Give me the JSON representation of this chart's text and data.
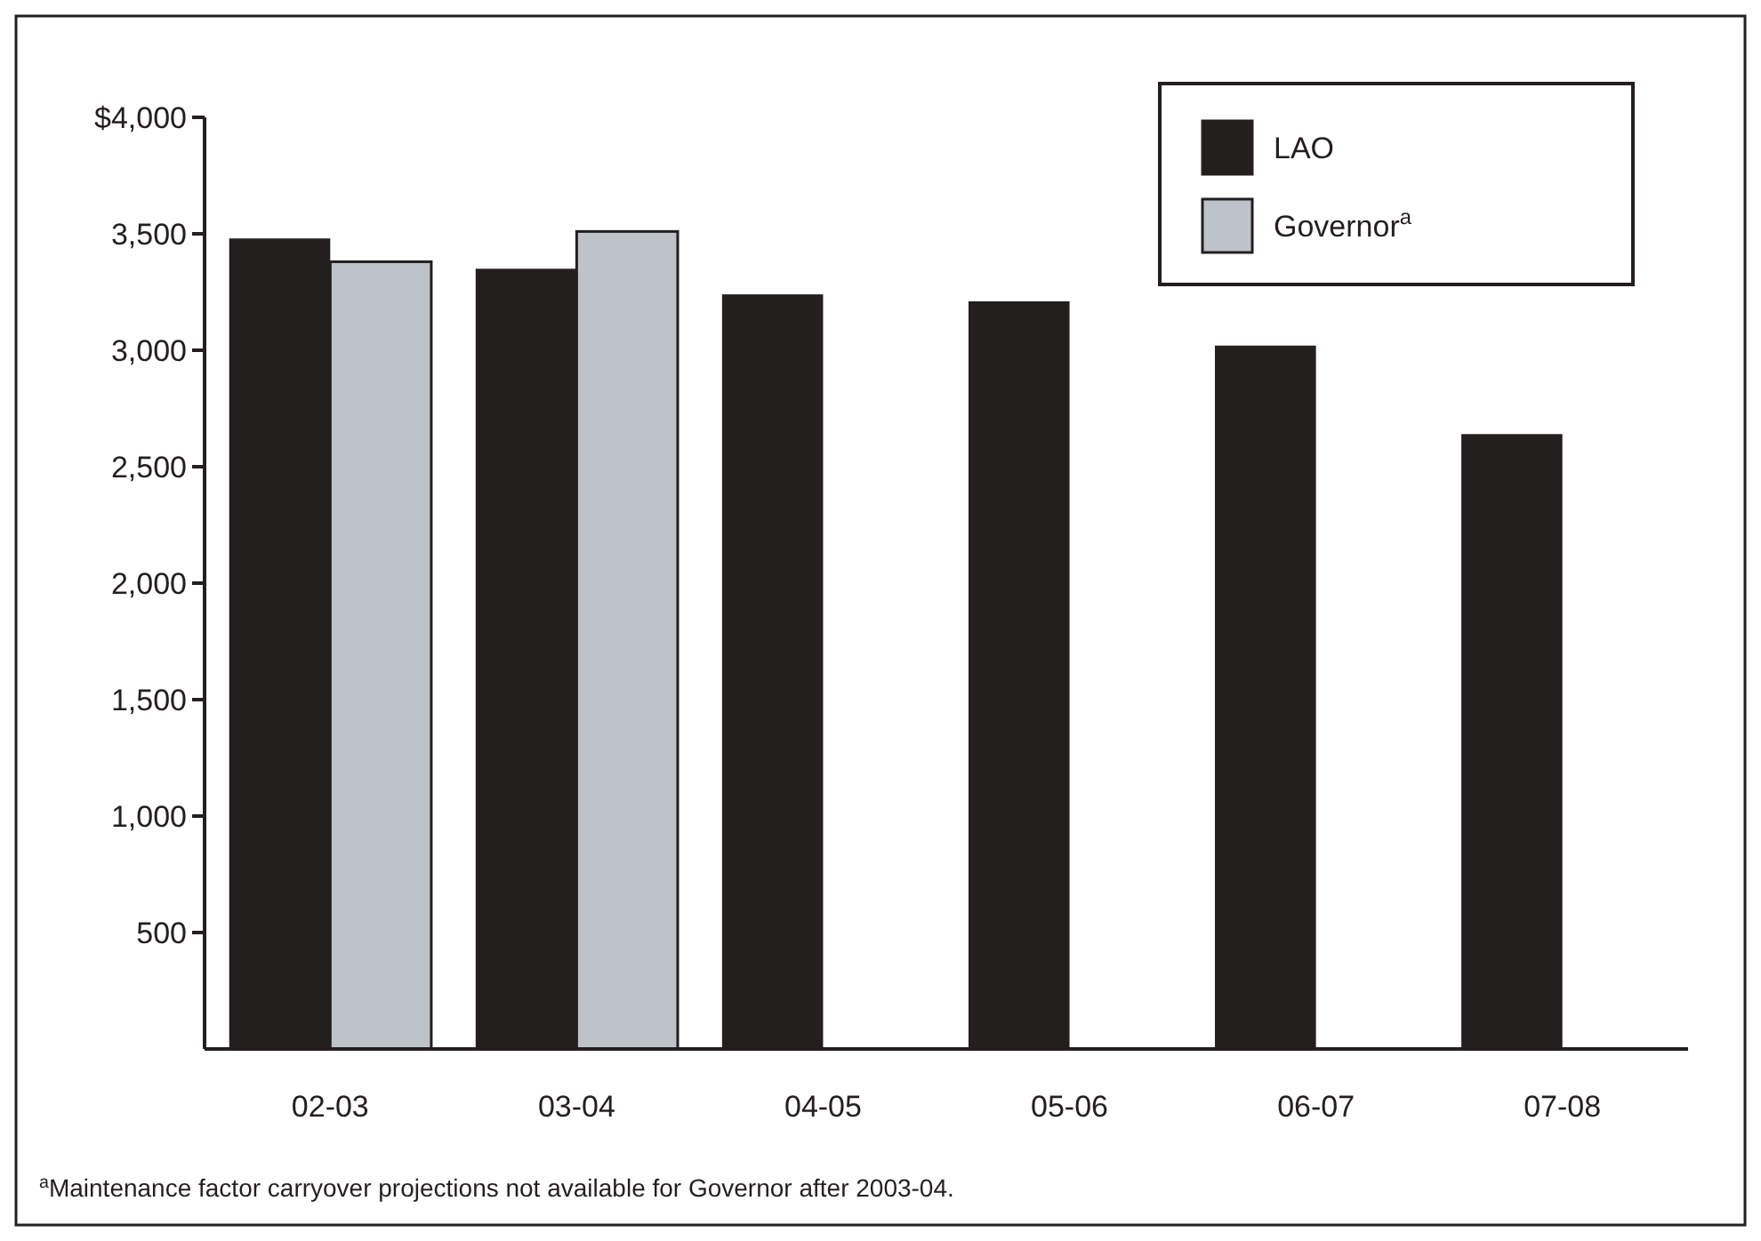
{
  "chart_data": {
    "type": "bar",
    "categories": [
      "02-03",
      "03-04",
      "04-05",
      "05-06",
      "06-07",
      "07-08"
    ],
    "series": [
      {
        "name": "LAO",
        "color": "#231f1e",
        "values": [
          3480,
          3350,
          3240,
          3210,
          3020,
          2640
        ]
      },
      {
        "name": "Governor$^{a}$",
        "color": "#bec3ca",
        "values": [
          3380,
          3510,
          null,
          null,
          null,
          null
        ]
      }
    ],
    "ylim": [
      0,
      4000
    ],
    "yticks": [
      500,
      {
        "value": 1000,
        "label": "1,000"
      },
      {
        "value": 1500,
        "label": "1,500"
      },
      {
        "value": 2000,
        "label": "2,000"
      },
      {
        "value": 2500,
        "label": "2,500"
      },
      {
        "value": 3000,
        "label": "3,000"
      },
      {
        "value": 3500,
        "label": "3,500"
      },
      {
        "value": 4000,
        "label": "$4,000"
      }
    ],
    "grid": false,
    "legend": "top right",
    "annotations": [
      "$^{a}$Maintenance factor carryover projections not available for Governor after 2003-04."
    ]
  }
}
